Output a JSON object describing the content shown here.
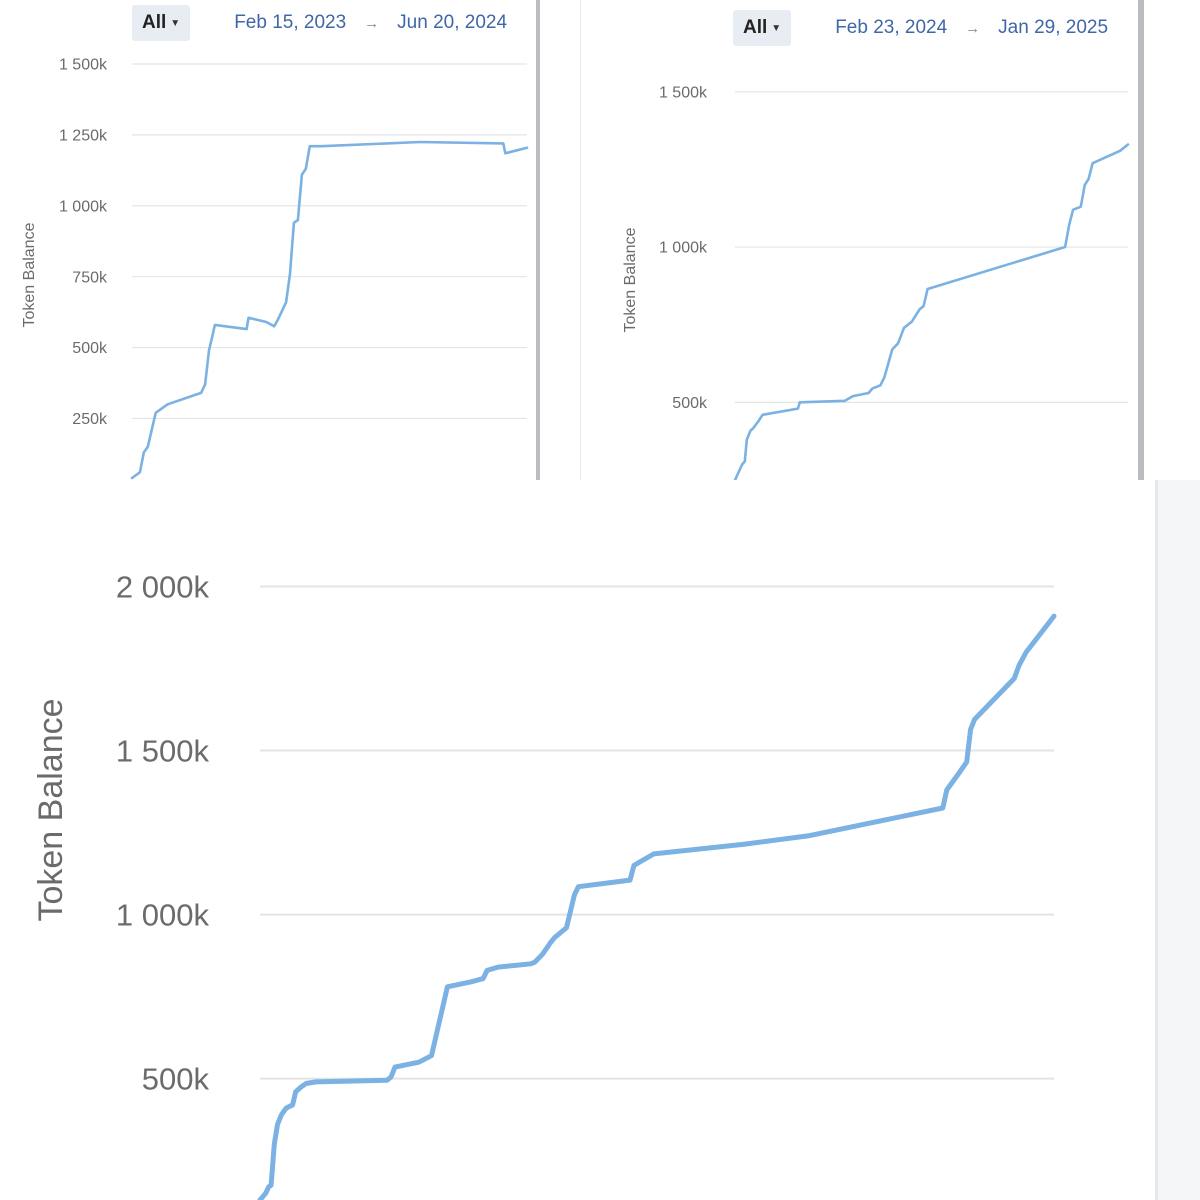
{
  "chart_data": [
    {
      "type": "line",
      "period_selector": "All",
      "date_from": "Feb 15, 2023",
      "date_to": "Jun 20, 2024",
      "range_arrow": "→",
      "ylabel": "Token Balance",
      "ylim": [
        40000,
        1500000
      ],
      "y_ticks": [
        250000,
        500000,
        750000,
        1000000,
        1250000,
        1500000
      ],
      "y_tick_labels": [
        "250k",
        "500k",
        "750k",
        "1 000k",
        "1 250k",
        "1 500k"
      ],
      "grid": true,
      "color": "#7bb1e3",
      "x": [
        0.0,
        0.02,
        0.03,
        0.04,
        0.06,
        0.09,
        0.175,
        0.185,
        0.195,
        0.2,
        0.21,
        0.29,
        0.295,
        0.34,
        0.36,
        0.37,
        0.38,
        0.39,
        0.4,
        0.41,
        0.42,
        0.43,
        0.44,
        0.45,
        0.48,
        0.73,
        0.94,
        0.945,
        1.0
      ],
      "values": [
        40000,
        60000,
        130000,
        150000,
        270000,
        300000,
        340000,
        370000,
        490000,
        520000,
        580000,
        565000,
        605000,
        590000,
        575000,
        600000,
        630000,
        660000,
        760000,
        940000,
        950000,
        1110000,
        1130000,
        1210000,
        1210000,
        1225000,
        1220000,
        1185000,
        1205000
      ]
    },
    {
      "type": "line",
      "period_selector": "All",
      "date_from": "Feb 23, 2024",
      "date_to": "Jan 29, 2025",
      "range_arrow": "→",
      "ylabel": "Token Balance",
      "ylim": [
        250000,
        1570000
      ],
      "y_ticks": [
        500000,
        1000000,
        1500000
      ],
      "y_tick_labels": [
        "500k",
        "1 000k",
        "1 500k"
      ],
      "grid": true,
      "color": "#7bb1e3",
      "x": [
        0.0,
        0.018,
        0.025,
        0.03,
        0.04,
        0.045,
        0.06,
        0.07,
        0.16,
        0.165,
        0.28,
        0.3,
        0.34,
        0.35,
        0.37,
        0.38,
        0.39,
        0.4,
        0.415,
        0.43,
        0.45,
        0.47,
        0.48,
        0.49,
        0.84,
        0.85,
        0.86,
        0.88,
        0.89,
        0.9,
        0.91,
        0.98,
        1.0
      ],
      "values": [
        250000,
        300000,
        310000,
        380000,
        410000,
        415000,
        440000,
        460000,
        480000,
        500000,
        505000,
        520000,
        530000,
        545000,
        555000,
        580000,
        625000,
        670000,
        690000,
        740000,
        760000,
        800000,
        810000,
        865000,
        1000000,
        1070000,
        1120000,
        1130000,
        1200000,
        1220000,
        1270000,
        1310000,
        1330000
      ]
    },
    {
      "type": "line",
      "ylabel": "Token Balance",
      "ylim": [
        130000,
        2090000
      ],
      "y_ticks": [
        500000,
        1000000,
        1500000,
        2000000
      ],
      "y_tick_labels": [
        "500k",
        "1 000k",
        "1 500k",
        "2 000k"
      ],
      "grid": true,
      "color": "#7bb1e3",
      "x": [
        0.0,
        0.007,
        0.011,
        0.014,
        0.018,
        0.022,
        0.027,
        0.033,
        0.041,
        0.045,
        0.052,
        0.058,
        0.07,
        0.16,
        0.165,
        0.17,
        0.2,
        0.216,
        0.236,
        0.266,
        0.281,
        0.286,
        0.3,
        0.341,
        0.346,
        0.356,
        0.366,
        0.371,
        0.381,
        0.386,
        0.396,
        0.401,
        0.466,
        0.471,
        0.496,
        0.611,
        0.69,
        0.86,
        0.865,
        0.88,
        0.89,
        0.895,
        0.9,
        0.95,
        0.956,
        0.965,
        1.0
      ],
      "values": [
        130000,
        150000,
        170000,
        175000,
        300000,
        360000,
        390000,
        410000,
        420000,
        460000,
        475000,
        485000,
        490000,
        495000,
        505000,
        535000,
        550000,
        570000,
        780000,
        795000,
        805000,
        830000,
        840000,
        850000,
        855000,
        880000,
        915000,
        930000,
        950000,
        960000,
        1060000,
        1085000,
        1105000,
        1150000,
        1185000,
        1215000,
        1240000,
        1325000,
        1380000,
        1430000,
        1465000,
        1565000,
        1595000,
        1720000,
        1760000,
        1800000,
        1910000
      ]
    }
  ]
}
